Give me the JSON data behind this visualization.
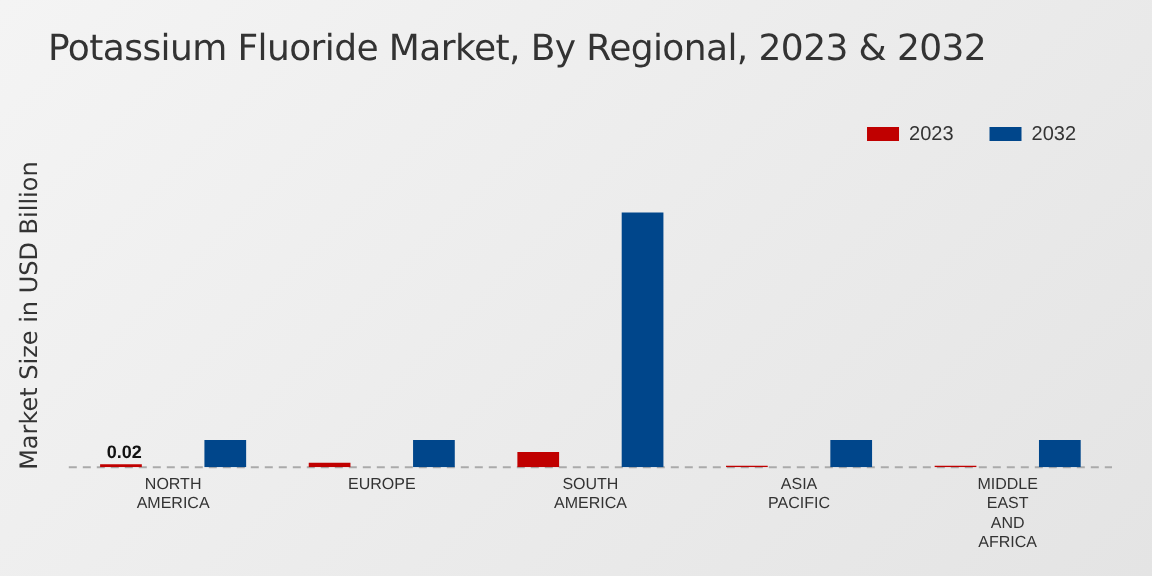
{
  "chart_data": {
    "type": "bar",
    "title": "Potassium Fluoride Market, By Regional, 2023 & 2032",
    "ylabel": "Market Size in USD Billion",
    "tick_labels": "x",
    "legend": "top right",
    "grid": false,
    "categories": [
      "NORTH AMERICA",
      "EUROPE",
      "SOUTH AMERICA",
      "ASIA PACIFIC",
      "MIDDLE EAST AND AFRICA"
    ],
    "series": [
      {
        "name": "2023",
        "color": "#c00000",
        "values": [
          0.02,
          0.03,
          0.1,
          0.01,
          0.01
        ],
        "value_labels": [
          "0.02",
          null,
          null,
          null,
          null
        ]
      },
      {
        "name": "2032",
        "color": "#00468b",
        "values": [
          0.18,
          0.18,
          1.68,
          0.18,
          0.18
        ]
      }
    ]
  }
}
